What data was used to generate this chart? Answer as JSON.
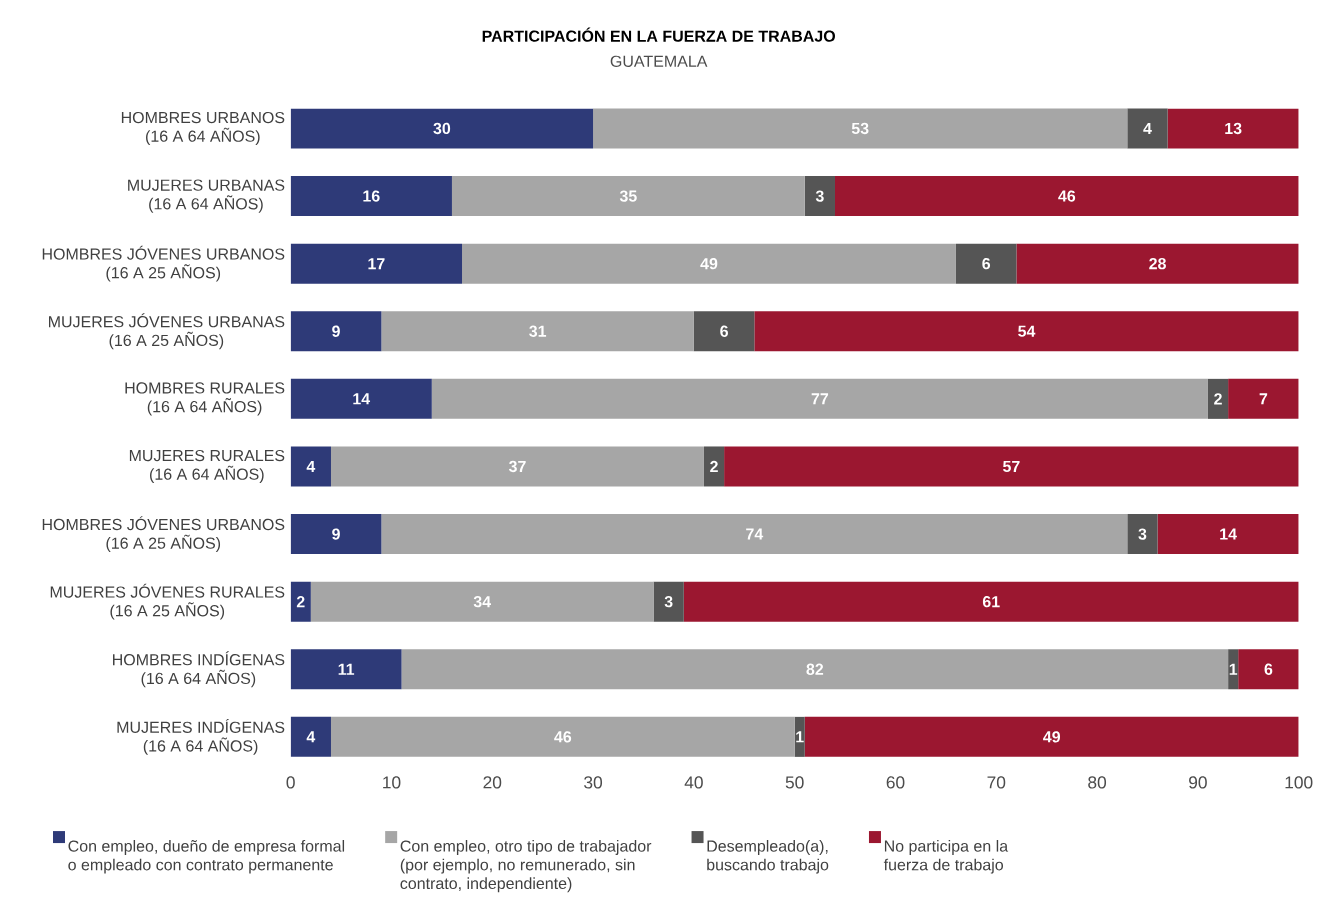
{
  "chart_data": {
    "type": "bar",
    "orientation": "horizontal",
    "stacked": true,
    "title": "PARTICIPACIÓN EN LA FUERZA DE TRABAJO",
    "subtitle": "GUATEMALA",
    "categories": [
      "HOMBRES URBANOS\n(16 A 64 AÑOS)",
      "MUJERES URBANAS\n(16 A 64 AÑOS)",
      "HOMBRES JÓVENES URBANOS\n(16 A 25 AÑOS)",
      "MUJERES JÓVENES URBANAS\n(16 A 25 AÑOS)",
      "HOMBRES RURALES\n(16 A 64 AÑOS)",
      "MUJERES RURALES\n(16 A 64 AÑOS)",
      "HOMBRES JÓVENES URBANOS\n(16 A 25 AÑOS)",
      "MUJERES JÓVENES RURALES\n(16 A 25 AÑOS)",
      "HOMBRES INDÍGENAS\n(16 A 64 AÑOS)",
      "MUJERES INDÍGENAS\n(16 A 64 AÑOS)"
    ],
    "series": [
      {
        "name": "Con empleo, dueño de empresa formal\no empleado con contrato permanente",
        "color": "#2e3a78",
        "values": [
          30,
          16,
          17,
          9,
          14,
          4,
          9,
          2,
          11,
          4
        ]
      },
      {
        "name": "Con empleo, otro tipo de trabajador\n(por ejemplo, no remunerado, sin\ncontrato, independiente)",
        "color": "#a6a6a6",
        "values": [
          53,
          35,
          49,
          31,
          77,
          37,
          74,
          34,
          82,
          46
        ]
      },
      {
        "name": "Desempleado(a),\nbuscando trabajo",
        "color": "#555555",
        "values": [
          4,
          3,
          6,
          6,
          2,
          2,
          3,
          3,
          1,
          1
        ]
      },
      {
        "name": "No participa en la\nfuerza de trabajo",
        "color": "#9b1730",
        "values": [
          13,
          46,
          28,
          54,
          7,
          57,
          14,
          61,
          6,
          49
        ]
      }
    ],
    "xlim": [
      0,
      100
    ],
    "xticks": [
      0,
      10,
      20,
      30,
      40,
      50,
      60,
      70,
      80,
      90,
      100
    ],
    "data_labels": true,
    "legend": "bottom"
  }
}
